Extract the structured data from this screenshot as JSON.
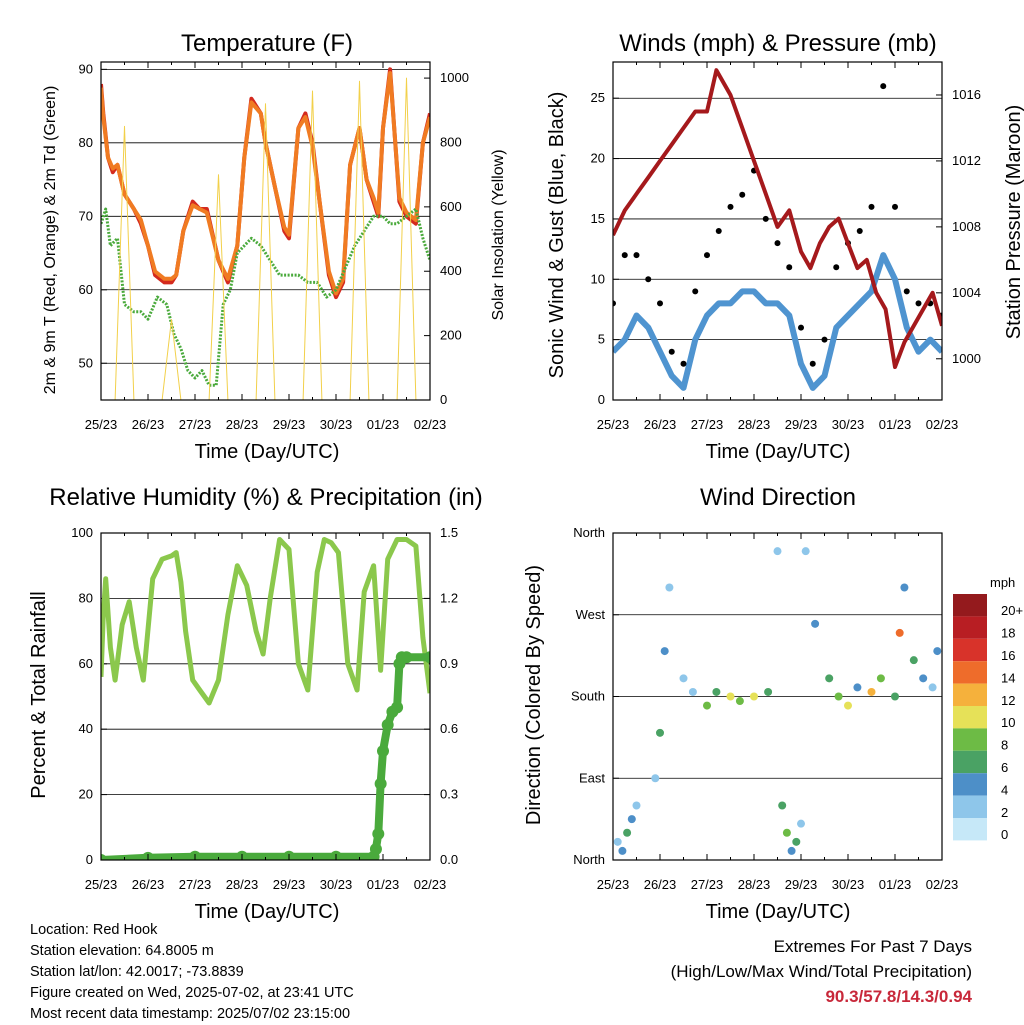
{
  "panels": {
    "temperature": {
      "title": "Temperature (F)",
      "xlabel": "Time (Day/UTC)",
      "ylabel_left": "2m & 9m T (Red, Orange) & 2m Td (Green)",
      "ylabel_right": "Solar Insolation (Yellow)"
    },
    "winds": {
      "title": "Winds (mph) & Pressure (mb)",
      "xlabel": "Time (Day/UTC)",
      "ylabel_left": "Sonic Wind & Gust (Blue, Black)",
      "ylabel_right": "Station Pressure (Maroon)"
    },
    "humidity": {
      "title": "Relative Humidity (%) & Precipitation (in)",
      "xlabel": "Time (Day/UTC)",
      "ylabel_left": "Percent & Total Rainfall"
    },
    "direction": {
      "title": "Wind Direction",
      "xlabel": "Time (Day/UTC)",
      "ylabel_left": "Direction (Colored By Speed)",
      "legend_unit": "mph"
    }
  },
  "footer": {
    "location": "Location: Red Hook",
    "elevation": "Station elevation: 64.8005 m",
    "latlon": "Station lat/lon: 42.0017; -73.8839",
    "created": "Figure created on Wed, 2025-07-02, at 23:41 UTC",
    "recent": "Most recent data timestamp: 2025/07/02 23:15:00"
  },
  "extremes": {
    "line1": "Extremes For Past 7 Days",
    "line2": "(High/Low/Max Wind/Total Precipitation)",
    "values": "90.3/57.8/14.3/0.94"
  },
  "colors": {
    "temp2m": "#d42a1e",
    "temp9m": "#f07b22",
    "dewpoint": "#4aaa3c",
    "solar": "#f2d04a",
    "wind": "#4f94d0",
    "gust": "#000000",
    "pressure": "#a5191c",
    "rh": "#8bc84c",
    "precip": "#4aaa3c"
  },
  "chart_data": [
    {
      "type": "line",
      "panel": "temperature",
      "x_ticks": [
        "25/23",
        "26/23",
        "27/23",
        "28/23",
        "29/23",
        "30/23",
        "01/23",
        "02/23"
      ],
      "xlim": [
        0,
        7
      ],
      "ylim": [
        45,
        91
      ],
      "yticks": [
        50,
        60,
        70,
        80,
        90
      ],
      "y2lim": [
        0,
        1050
      ],
      "y2ticks": [
        0,
        200,
        400,
        600,
        800,
        1000
      ],
      "grid": true,
      "series": [
        {
          "name": "2m T",
          "color": "#d42a1e",
          "x": [
            0,
            0.05,
            0.15,
            0.25,
            0.35,
            0.5,
            0.7,
            0.85,
            1,
            1.15,
            1.35,
            1.5,
            1.6,
            1.75,
            1.95,
            2.1,
            2.25,
            2.5,
            2.7,
            2.9,
            3.05,
            3.2,
            3.4,
            3.5,
            3.7,
            3.9,
            4,
            4.2,
            4.35,
            4.5,
            4.65,
            4.85,
            5.0,
            5.15,
            5.3,
            5.5,
            5.65,
            5.8,
            5.9,
            6.0,
            6.15,
            6.35,
            6.5,
            6.7,
            6.85,
            7
          ],
          "y": [
            88,
            84,
            78,
            76,
            77,
            73,
            71,
            69,
            66,
            62,
            61,
            61,
            62,
            68,
            72,
            71,
            71,
            64,
            61,
            66,
            78,
            86,
            84,
            80,
            74,
            68,
            67,
            82,
            84,
            80,
            72,
            62,
            59,
            61,
            77,
            82,
            75,
            72,
            70,
            82,
            90,
            72,
            70,
            69,
            80,
            84
          ]
        },
        {
          "name": "9m T",
          "color": "#f07b22",
          "x": [
            0,
            0.05,
            0.15,
            0.25,
            0.35,
            0.5,
            0.7,
            0.85,
            1,
            1.15,
            1.35,
            1.5,
            1.6,
            1.75,
            1.95,
            2.1,
            2.25,
            2.5,
            2.7,
            2.9,
            3.05,
            3.2,
            3.4,
            3.5,
            3.7,
            3.9,
            4,
            4.2,
            4.35,
            4.5,
            4.65,
            4.85,
            5.0,
            5.15,
            5.3,
            5.5,
            5.65,
            5.8,
            5.9,
            6.0,
            6.15,
            6.35,
            6.5,
            6.7,
            6.85,
            7
          ],
          "y": [
            87.5,
            83.5,
            78,
            76.5,
            77,
            73,
            71,
            69.5,
            66,
            62.5,
            61.5,
            61.5,
            62,
            68,
            71.5,
            71,
            70.5,
            64,
            61.5,
            66,
            78,
            85.5,
            84,
            80,
            74,
            68.5,
            67.5,
            82,
            83.5,
            79.5,
            72,
            62.5,
            59.5,
            61.5,
            77,
            82,
            75,
            72.5,
            70.5,
            82,
            89.5,
            72.5,
            70.5,
            69.5,
            80,
            83.5
          ]
        },
        {
          "name": "2m Td",
          "color": "#4aaa3c",
          "x": [
            0,
            0.1,
            0.2,
            0.35,
            0.5,
            0.7,
            0.85,
            1,
            1.2,
            1.4,
            1.55,
            1.7,
            1.85,
            2,
            2.15,
            2.3,
            2.45,
            2.6,
            2.75,
            2.9,
            3.05,
            3.2,
            3.4,
            3.6,
            3.8,
            4,
            4.2,
            4.4,
            4.6,
            4.8,
            5.0,
            5.2,
            5.4,
            5.6,
            5.8,
            6.0,
            6.15,
            6.3,
            6.5,
            6.7,
            6.85,
            7
          ],
          "y": [
            69,
            71,
            66,
            67,
            58,
            57,
            57,
            56,
            59,
            58,
            54,
            52,
            49,
            48,
            49,
            47,
            47,
            58,
            60,
            65,
            66,
            67,
            66,
            64,
            62,
            62,
            62,
            61,
            61,
            59,
            60,
            63,
            66,
            68,
            70,
            70,
            69,
            69,
            70,
            71,
            67,
            64
          ]
        },
        {
          "name": "Solar Insolation",
          "color": "#f2d04a",
          "axis": "right",
          "x": [
            0,
            0.3,
            0.5,
            0.7,
            1,
            1.3,
            1.5,
            1.7,
            2,
            2.3,
            2.5,
            2.7,
            3,
            3.3,
            3.5,
            3.7,
            4,
            4.3,
            4.5,
            4.7,
            5,
            5.3,
            5.5,
            5.7,
            6,
            6.3,
            6.5,
            6.7,
            7
          ],
          "y": [
            0,
            0,
            850,
            0,
            0,
            0,
            250,
            0,
            0,
            0,
            700,
            0,
            0,
            0,
            920,
            0,
            0,
            0,
            960,
            0,
            0,
            0,
            990,
            0,
            0,
            0,
            1000,
            0,
            0
          ]
        }
      ]
    },
    {
      "type": "scatter",
      "panel": "winds",
      "x_ticks": [
        "25/23",
        "26/23",
        "27/23",
        "28/23",
        "29/23",
        "30/23",
        "01/23",
        "02/23"
      ],
      "xlim": [
        0,
        7
      ],
      "ylim": [
        0,
        28
      ],
      "yticks": [
        0,
        5,
        10,
        15,
        20,
        25
      ],
      "y2lim": [
        997.5,
        1018
      ],
      "y2ticks": [
        1000,
        1004,
        1008,
        1012,
        1016
      ],
      "grid": true,
      "series": [
        {
          "name": "Sonic Wind",
          "color": "#4f94d0",
          "x": [
            0,
            0.25,
            0.5,
            0.75,
            1,
            1.25,
            1.5,
            1.75,
            2,
            2.25,
            2.5,
            2.75,
            3,
            3.25,
            3.5,
            3.75,
            4,
            4.25,
            4.5,
            4.75,
            5,
            5.25,
            5.5,
            5.75,
            6,
            6.25,
            6.5,
            6.75,
            7
          ],
          "y": [
            4,
            5,
            7,
            6,
            4,
            2,
            1,
            5,
            7,
            8,
            8,
            9,
            9,
            8,
            8,
            7,
            3,
            1,
            2,
            6,
            7,
            8,
            9,
            12,
            10,
            6,
            4,
            5,
            4
          ]
        },
        {
          "name": "Gust",
          "color": "#000000",
          "x": [
            0,
            0.25,
            0.5,
            0.75,
            1,
            1.25,
            1.5,
            1.75,
            2,
            2.25,
            2.5,
            2.75,
            3,
            3.25,
            3.5,
            3.75,
            4,
            4.25,
            4.5,
            4.75,
            5,
            5.25,
            5.5,
            5.75,
            6,
            6.25,
            6.5,
            6.75,
            7
          ],
          "y": [
            8,
            12,
            12,
            10,
            8,
            4,
            3,
            9,
            12,
            14,
            16,
            17,
            19,
            15,
            13,
            11,
            6,
            3,
            5,
            11,
            13,
            14,
            16,
            26,
            16,
            9,
            8,
            8,
            7
          ]
        },
        {
          "name": "Station Pressure",
          "color": "#a5191c",
          "axis": "right",
          "type": "line",
          "x": [
            0,
            0.25,
            0.5,
            0.75,
            1,
            1.25,
            1.5,
            1.75,
            2,
            2.2,
            2.5,
            2.75,
            3,
            3.25,
            3.5,
            3.75,
            4,
            4.2,
            4.4,
            4.6,
            4.8,
            5,
            5.2,
            5.4,
            5.6,
            5.8,
            6,
            6.2,
            6.4,
            6.6,
            6.8,
            7
          ],
          "y": [
            1007.5,
            1009,
            1010,
            1011,
            1012,
            1013,
            1014,
            1015,
            1015,
            1017.5,
            1016,
            1014,
            1012,
            1010,
            1008,
            1009,
            1006.5,
            1005.5,
            1007,
            1008,
            1008.5,
            1007,
            1005.5,
            1006,
            1004,
            1003,
            999.5,
            1001,
            1002,
            1003,
            1004,
            1002
          ]
        }
      ]
    },
    {
      "type": "line",
      "panel": "humidity",
      "x_ticks": [
        "25/23",
        "26/23",
        "27/23",
        "28/23",
        "29/23",
        "30/23",
        "01/23",
        "02/23"
      ],
      "xlim": [
        0,
        7
      ],
      "ylim": [
        0,
        100
      ],
      "yticks": [
        0,
        20,
        40,
        60,
        80,
        100
      ],
      "y2lim": [
        0,
        1.5
      ],
      "y2ticks": [
        0.0,
        0.3,
        0.6,
        0.9,
        1.2,
        1.5
      ],
      "grid": true,
      "series": [
        {
          "name": "Relative Humidity",
          "color": "#8bc84c",
          "x": [
            0,
            0.05,
            0.1,
            0.2,
            0.3,
            0.45,
            0.6,
            0.75,
            0.9,
            1.1,
            1.3,
            1.5,
            1.6,
            1.7,
            1.8,
            1.95,
            2.1,
            2.3,
            2.5,
            2.7,
            2.9,
            3.1,
            3.3,
            3.45,
            3.6,
            3.8,
            4,
            4.2,
            4.4,
            4.6,
            4.75,
            4.9,
            5.05,
            5.25,
            5.45,
            5.6,
            5.8,
            5.95,
            6.1,
            6.3,
            6.5,
            6.7,
            6.85,
            7
          ],
          "y": [
            56,
            75,
            86,
            65,
            55,
            72,
            79,
            65,
            55,
            86,
            92,
            93,
            94,
            85,
            70,
            55,
            52,
            48,
            55,
            75,
            90,
            84,
            70,
            63,
            80,
            98,
            95,
            60,
            52,
            88,
            98,
            97,
            94,
            60,
            52,
            82,
            90,
            58,
            92,
            98,
            98,
            96,
            68,
            51
          ]
        },
        {
          "name": "Total Rainfall",
          "color": "#4aaa3c",
          "axis": "right",
          "x": [
            0,
            1,
            2,
            3,
            4,
            5,
            5.8,
            5.85,
            5.9,
            5.95,
            6.0,
            6.1,
            6.2,
            6.3,
            6.35,
            6.4,
            6.5,
            7
          ],
          "y": [
            0,
            0.01,
            0.015,
            0.015,
            0.015,
            0.015,
            0.015,
            0.05,
            0.12,
            0.35,
            0.5,
            0.62,
            0.68,
            0.7,
            0.9,
            0.93,
            0.93,
            0.93
          ]
        }
      ]
    },
    {
      "type": "scatter",
      "panel": "direction",
      "x_ticks": [
        "25/23",
        "26/23",
        "27/23",
        "28/23",
        "29/23",
        "30/23",
        "01/23",
        "02/23"
      ],
      "xlim": [
        0,
        7
      ],
      "y_categories": [
        "North",
        "East",
        "South",
        "West",
        "North"
      ],
      "ylim": [
        0,
        360
      ],
      "grid": true,
      "legend": {
        "title": "mph",
        "levels": [
          "0",
          "2",
          "4",
          "6",
          "8",
          "10",
          "12",
          "14",
          "16",
          "18",
          "20+"
        ],
        "colors": [
          "#c6e8f8",
          "#8ec6ea",
          "#4d8fc8",
          "#4aa264",
          "#6dbb45",
          "#e6e158",
          "#f5b13c",
          "#ee6c2b",
          "#d8332a",
          "#b81e23",
          "#941a1d"
        ],
        "placement": "right"
      },
      "series": [
        {
          "name": "direction",
          "x": [
            0.1,
            0.2,
            0.3,
            0.4,
            0.5,
            0.9,
            1.0,
            1.1,
            1.2,
            1.5,
            1.7,
            2.0,
            2.2,
            2.5,
            2.7,
            3.0,
            3.3,
            3.5,
            3.6,
            3.7,
            3.8,
            3.9,
            4.0,
            4.1,
            4.3,
            4.6,
            4.8,
            5.0,
            5.2,
            5.5,
            5.7,
            6.0,
            6.1,
            6.2,
            6.4,
            6.6,
            6.8,
            6.9
          ],
          "y": [
            20,
            10,
            30,
            45,
            60,
            90,
            140,
            230,
            300,
            200,
            185,
            170,
            185,
            180,
            175,
            180,
            185,
            340,
            60,
            30,
            10,
            20,
            40,
            340,
            260,
            200,
            180,
            170,
            190,
            185,
            200,
            180,
            250,
            300,
            220,
            200,
            190,
            230
          ],
          "speed": [
            1,
            4,
            6,
            3,
            2,
            1,
            6,
            4,
            1,
            2,
            2,
            8,
            6,
            10,
            8,
            10,
            6,
            1,
            6,
            8,
            4,
            6,
            2,
            1,
            3,
            6,
            8,
            10,
            4,
            12,
            8,
            6,
            13,
            4,
            5,
            3,
            2,
            4
          ]
        }
      ]
    }
  ]
}
